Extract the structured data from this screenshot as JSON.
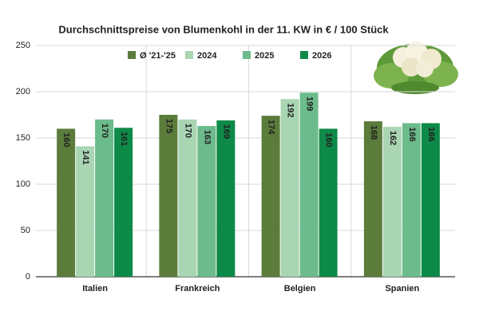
{
  "chart_data": {
    "type": "bar",
    "title": "Durchschnittspreise von Blumenkohl in der 11. KW in € / 100 Stück",
    "categories": [
      "Italien",
      "Frankreich",
      "Belgien",
      "Spanien"
    ],
    "series": [
      {
        "name": "Ø '21-'25",
        "color": "#5b7c3b",
        "values": [
          160,
          175,
          174,
          168
        ]
      },
      {
        "name": "2024",
        "color": "#a9d5b3",
        "values": [
          141,
          170,
          192,
          162
        ]
      },
      {
        "name": "2025",
        "color": "#6cbb8c",
        "values": [
          170,
          163,
          199,
          166
        ]
      },
      {
        "name": "2026",
        "color": "#0e8a48",
        "values": [
          161,
          169,
          160,
          166
        ]
      }
    ],
    "ylim": [
      0,
      250
    ],
    "yticks": [
      0,
      50,
      100,
      150,
      200,
      250
    ],
    "grid": true
  }
}
